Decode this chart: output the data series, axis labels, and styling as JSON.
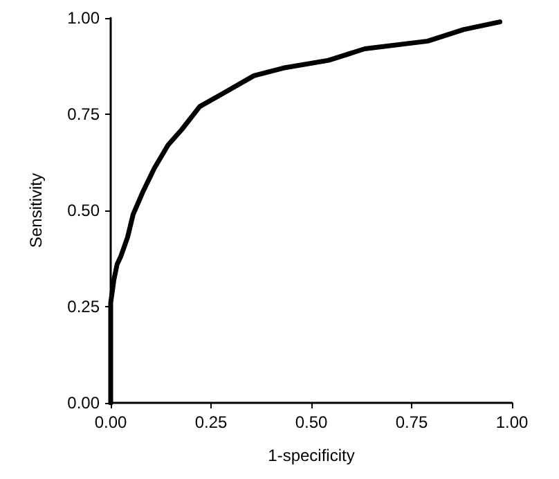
{
  "chart_data": {
    "type": "line",
    "xlabel": "1-specificity",
    "ylabel": "Sensitivity",
    "series": [
      {
        "color": "#000000",
        "x": [
          0,
          0,
          0.008,
          0.016,
          0.025,
          0.042,
          0.056,
          0.081,
          0.109,
          0.143,
          0.177,
          0.222,
          0.273,
          0.357,
          0.43,
          0.543,
          0.633,
          0.79,
          0.88,
          0.97
        ],
        "values": [
          0,
          0.26,
          0.32,
          0.36,
          0.38,
          0.43,
          0.49,
          0.55,
          0.61,
          0.67,
          0.71,
          0.77,
          0.8,
          0.85,
          0.87,
          0.89,
          0.92,
          0.94,
          0.97,
          0.99
        ]
      }
    ],
    "xlim": [
      0,
      1
    ],
    "ylim": [
      0,
      1
    ],
    "xticks": [
      {
        "value": 0,
        "label": "0.00"
      },
      {
        "value": 0.25,
        "label": "0.25"
      },
      {
        "value": 0.5,
        "label": "0.50"
      },
      {
        "value": 0.75,
        "label": "0.75"
      },
      {
        "value": 1,
        "label": "1.00"
      }
    ],
    "yticks": [
      {
        "value": 0,
        "label": "0.00"
      },
      {
        "value": 0.25,
        "label": "0.25"
      },
      {
        "value": 0.5,
        "label": "0.50"
      },
      {
        "value": 0.75,
        "label": "0.75"
      },
      {
        "value": 1,
        "label": "1.00"
      }
    ],
    "grid": false,
    "marker": "none",
    "line_style": "solid"
  }
}
